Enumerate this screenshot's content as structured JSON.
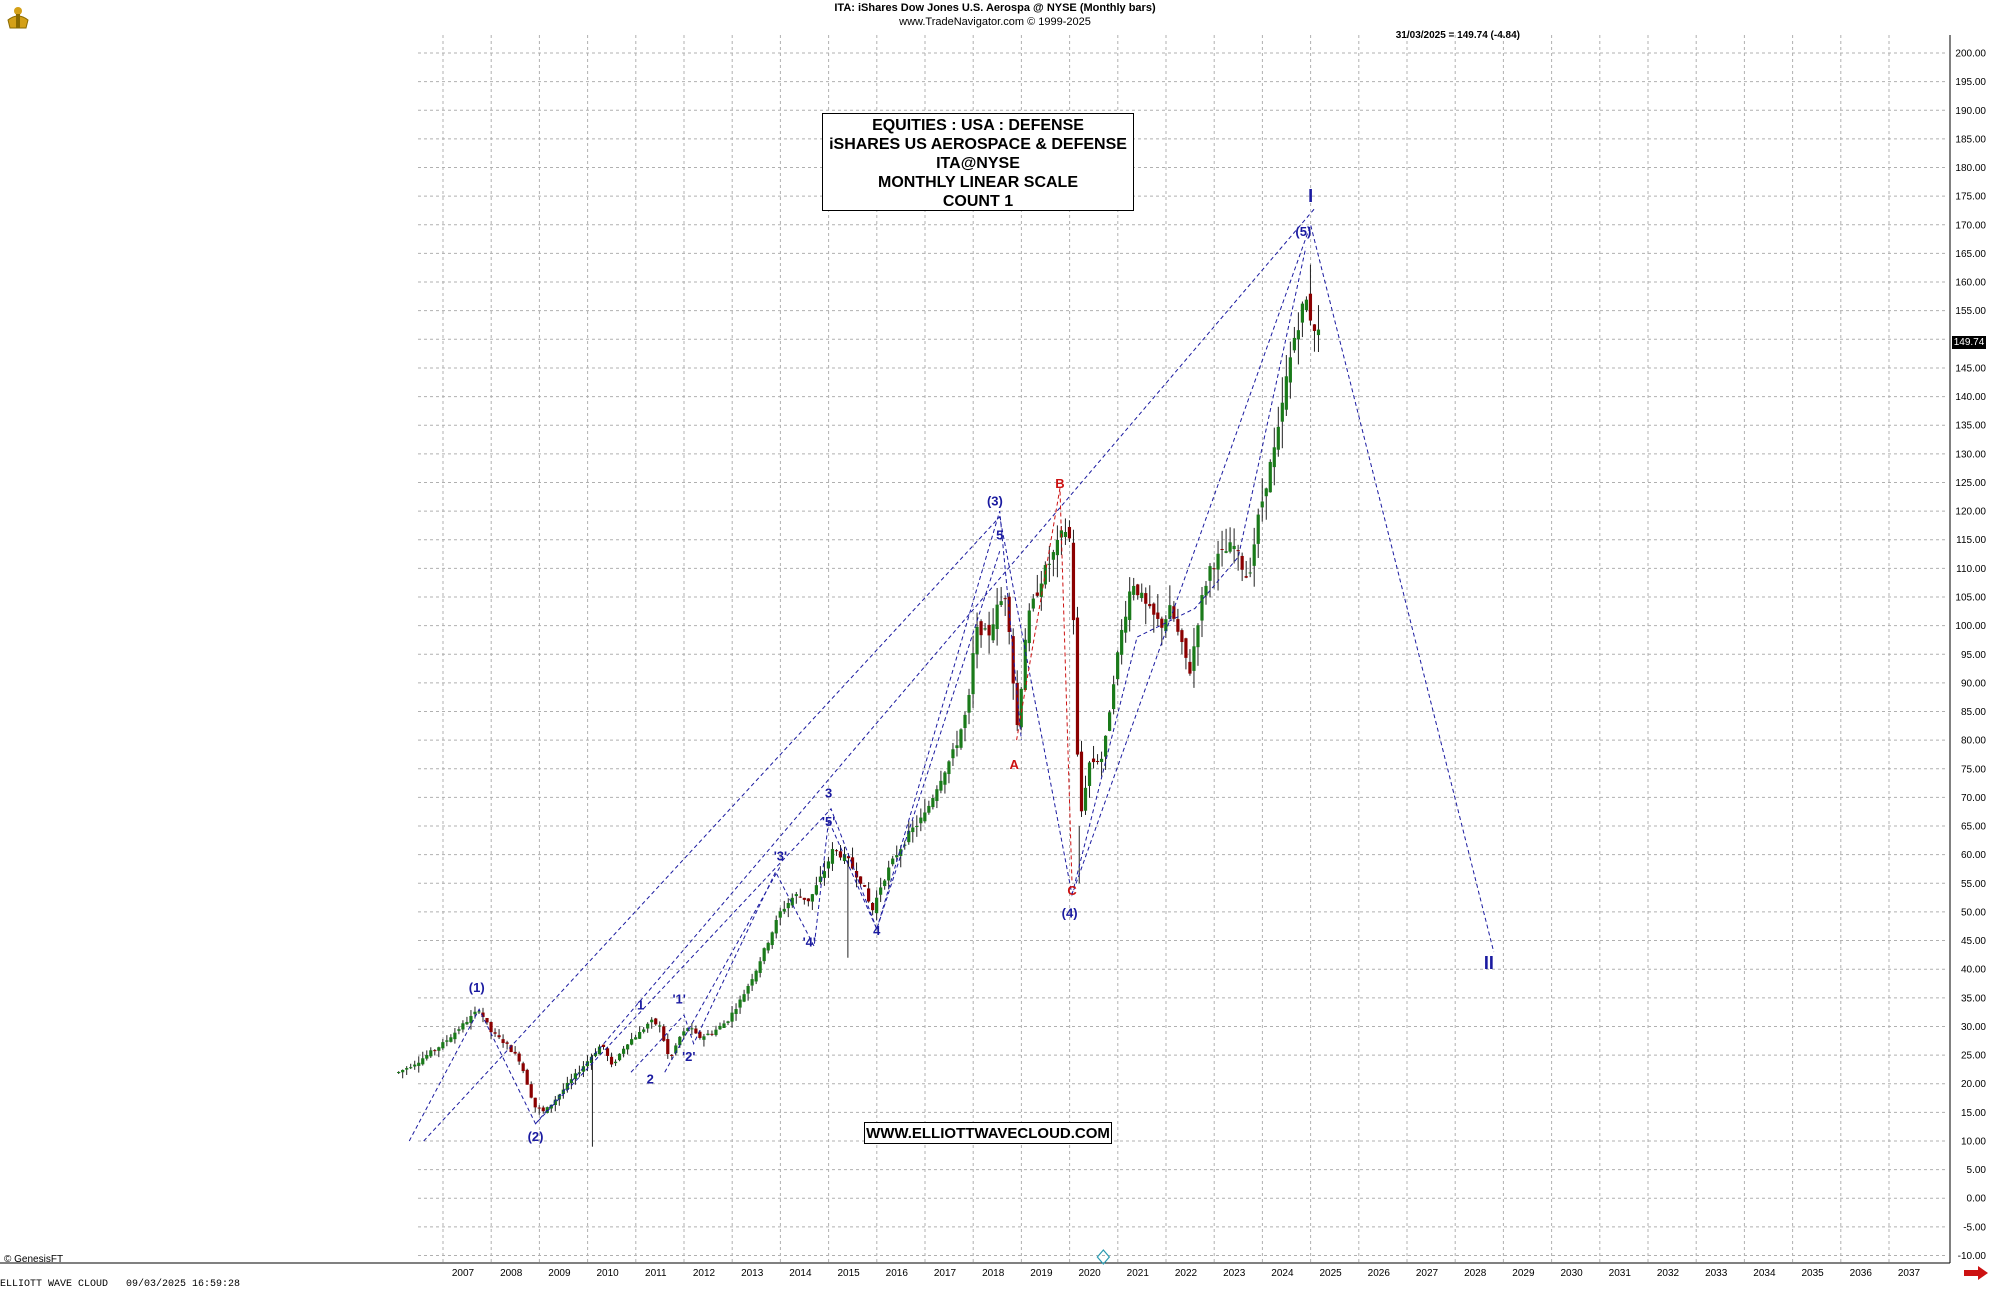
{
  "header": {
    "title": "ITA:  iShares Dow Jones U.S. Aerospa @ NYSE  (Monthly bars)",
    "subtitle": "www.TradeNavigator.com © 1999-2025",
    "last_value": "31/03/2025 = 149.74 (-4.84)"
  },
  "info_box": [
    "EQUITIES : USA : DEFENSE",
    "iSHARES US AEROSPACE & DEFENSE",
    "ITA@NYSE",
    "MONTHLY LINEAR SCALE",
    "COUNT 1"
  ],
  "url_box": "WWW.ELLIOTTWAVECLOUD.COM",
  "footer": {
    "genesis": "© GenesisFT",
    "left": "ELLIOTT WAVE CLOUD   09/03/2025 16:59:28"
  },
  "price_badge": "149.74",
  "colors": {
    "blue_wave": "#1a1aa0",
    "red_wave": "#cc1111",
    "bullish": "#1a7a1a",
    "bearish": "#8b0000",
    "grid": "#b0b0b0"
  },
  "chart_data": {
    "type": "candlestick",
    "ylim": [
      -10,
      200
    ],
    "y_ticks": [
      -10,
      -5,
      0,
      5,
      10,
      15,
      20,
      25,
      30,
      35,
      40,
      45,
      50,
      55,
      60,
      65,
      70,
      75,
      80,
      85,
      90,
      95,
      100,
      105,
      110,
      115,
      120,
      125,
      130,
      135,
      140,
      145,
      150,
      155,
      160,
      165,
      170,
      175,
      180,
      185,
      190,
      195,
      200
    ],
    "x_ticks": [
      "2007",
      "2008",
      "2009",
      "2010",
      "2011",
      "2012",
      "2013",
      "2014",
      "2015",
      "2016",
      "2017",
      "2018",
      "2019",
      "2020",
      "2021",
      "2022",
      "2023",
      "2024",
      "2025",
      "2026",
      "2027",
      "2028",
      "2029",
      "2030",
      "2031",
      "2032",
      "2033",
      "2034",
      "2035",
      "2036",
      "2037"
    ],
    "xlim": [
      2006.08,
      2037.6
    ],
    "price_path": [
      [
        2006.08,
        22
      ],
      [
        2006.5,
        24
      ],
      [
        2007.0,
        27
      ],
      [
        2007.5,
        31
      ],
      [
        2007.75,
        33
      ],
      [
        2008.0,
        29
      ],
      [
        2008.3,
        27
      ],
      [
        2008.6,
        24
      ],
      [
        2008.9,
        16
      ],
      [
        2009.1,
        15
      ],
      [
        2009.4,
        18
      ],
      [
        2009.7,
        21
      ],
      [
        2010.0,
        24
      ],
      [
        2010.3,
        27
      ],
      [
        2010.5,
        23
      ],
      [
        2010.8,
        27
      ],
      [
        2011.1,
        29
      ],
      [
        2011.3,
        31
      ],
      [
        2011.5,
        30
      ],
      [
        2011.7,
        24
      ],
      [
        2011.9,
        28
      ],
      [
        2012.1,
        30
      ],
      [
        2012.3,
        28
      ],
      [
        2012.6,
        29
      ],
      [
        2012.9,
        31
      ],
      [
        2013.2,
        35
      ],
      [
        2013.5,
        40
      ],
      [
        2013.8,
        46
      ],
      [
        2014.0,
        50
      ],
      [
        2014.3,
        53
      ],
      [
        2014.6,
        52
      ],
      [
        2014.9,
        57
      ],
      [
        2015.1,
        61
      ],
      [
        2015.4,
        59
      ],
      [
        2015.7,
        55
      ],
      [
        2015.9,
        50
      ],
      [
        2016.1,
        55
      ],
      [
        2016.4,
        60
      ],
      [
        2016.7,
        64
      ],
      [
        2017.0,
        67
      ],
      [
        2017.3,
        73
      ],
      [
        2017.6,
        78
      ],
      [
        2017.9,
        86
      ],
      [
        2018.0,
        95
      ],
      [
        2018.1,
        100
      ],
      [
        2018.3,
        98
      ],
      [
        2018.5,
        103
      ],
      [
        2018.7,
        106
      ],
      [
        2018.8,
        93
      ],
      [
        2018.92,
        82
      ],
      [
        2019.1,
        100
      ],
      [
        2019.4,
        108
      ],
      [
        2019.7,
        113
      ],
      [
        2019.9,
        117
      ],
      [
        2020.0,
        115
      ],
      [
        2020.1,
        98
      ],
      [
        2020.2,
        65
      ],
      [
        2020.4,
        76
      ],
      [
        2020.7,
        77
      ],
      [
        2020.9,
        90
      ],
      [
        2021.1,
        100
      ],
      [
        2021.3,
        108
      ],
      [
        2021.6,
        103
      ],
      [
        2021.9,
        100
      ],
      [
        2022.1,
        103
      ],
      [
        2022.3,
        97
      ],
      [
        2022.5,
        92
      ],
      [
        2022.7,
        103
      ],
      [
        2022.9,
        110
      ],
      [
        2023.1,
        112
      ],
      [
        2023.4,
        114
      ],
      [
        2023.7,
        108
      ],
      [
        2023.9,
        118
      ],
      [
        2024.1,
        126
      ],
      [
        2024.3,
        132
      ],
      [
        2024.5,
        143
      ],
      [
        2024.7,
        152
      ],
      [
        2024.9,
        157
      ],
      [
        2025.0,
        154
      ],
      [
        2025.2,
        150
      ]
    ],
    "wave_lines_blue": [
      [
        [
          2006.3,
          10
        ],
        [
          2007.75,
          33
        ],
        [
          2008.92,
          13
        ],
        [
          2015.05,
          68
        ],
        [
          2016.0,
          47
        ]
      ],
      [
        [
          2006.6,
          10
        ],
        [
          2018.55,
          119
        ],
        [
          2020.05,
          53
        ],
        [
          2025.0,
          170
        ],
        [
          2028.8,
          43
        ]
      ],
      [
        [
          2008.92,
          13
        ],
        [
          2025.1,
          173
        ]
      ],
      [
        [
          2010.9,
          22
        ],
        [
          2012.0,
          32
        ],
        [
          2012.2,
          27
        ],
        [
          2013.9,
          57
        ],
        [
          2014.7,
          44
        ],
        [
          2015.0,
          66
        ],
        [
          2016.0,
          47
        ],
        [
          2018.55,
          113
        ]
      ],
      [
        [
          2011.6,
          22
        ],
        [
          2014.0,
          58
        ]
      ],
      [
        [
          2016.0,
          47
        ],
        [
          2018.55,
          120
        ],
        [
          2019.0,
          80
        ]
      ],
      [
        [
          2020.05,
          53
        ],
        [
          2021.4,
          98
        ],
        [
          2022.6,
          103
        ],
        [
          2023.5,
          112
        ],
        [
          2024.9,
          166
        ]
      ]
    ],
    "wave_lines_red": [
      [
        [
          2018.9,
          80
        ],
        [
          2019.8,
          124
        ],
        [
          2020.05,
          55
        ]
      ]
    ],
    "labels_blue": [
      {
        "text": "(1)",
        "x": 2007.7,
        "y": 36
      },
      {
        "text": "(2)",
        "x": 2008.92,
        "y": 10
      },
      {
        "text": "1",
        "x": 2011.1,
        "y": 33
      },
      {
        "text": "2",
        "x": 2011.3,
        "y": 20
      },
      {
        "text": "'1'",
        "x": 2011.9,
        "y": 34
      },
      {
        "text": "'2'",
        "x": 2012.1,
        "y": 24
      },
      {
        "text": "'3'",
        "x": 2014.0,
        "y": 59
      },
      {
        "text": "'4'",
        "x": 2014.6,
        "y": 44
      },
      {
        "text": "3",
        "x": 2015.0,
        "y": 70
      },
      {
        "text": "'5'",
        "x": 2015.0,
        "y": 65
      },
      {
        "text": "4",
        "x": 2016.0,
        "y": 46
      },
      {
        "text": "(3)",
        "x": 2018.45,
        "y": 121
      },
      {
        "text": "5",
        "x": 2018.55,
        "y": 115
      },
      {
        "text": "(4)",
        "x": 2020.0,
        "y": 49
      },
      {
        "text": "(5)",
        "x": 2024.85,
        "y": 168
      },
      {
        "text": "I",
        "x": 2025.0,
        "y": 174
      },
      {
        "text": "II",
        "x": 2028.7,
        "y": 40
      }
    ],
    "labels_red": [
      {
        "text": "A",
        "x": 2018.85,
        "y": 75
      },
      {
        "text": "B",
        "x": 2019.8,
        "y": 124
      },
      {
        "text": "C",
        "x": 2020.05,
        "y": 53
      }
    ]
  }
}
